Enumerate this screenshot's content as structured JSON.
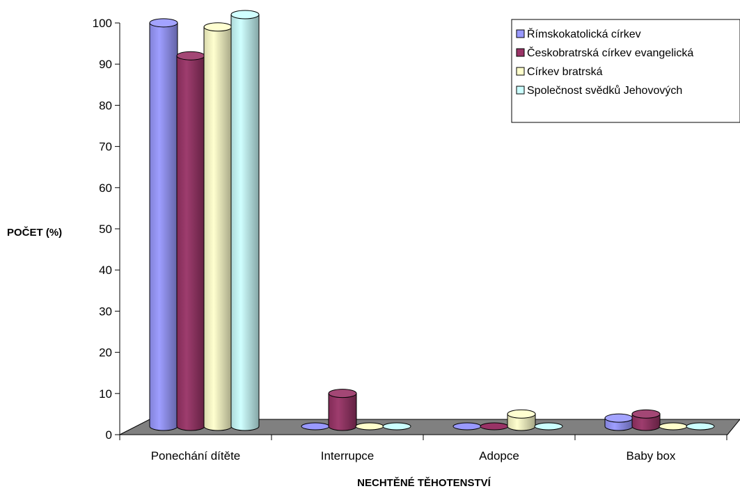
{
  "chart_data": {
    "type": "bar",
    "style": "3d-cylinder",
    "title": "",
    "xlabel": "NECHTĚNÉ TĚHOTENSTVÍ",
    "ylabel": "POČET (%)",
    "ylim": [
      0,
      100
    ],
    "yticks": [
      0,
      10,
      20,
      30,
      40,
      50,
      60,
      70,
      80,
      90,
      100
    ],
    "grid": false,
    "legend_position": "top-right",
    "categories": [
      "Ponechání dítěte",
      "Interrupce",
      "Adopce",
      "Baby box"
    ],
    "series": [
      {
        "name": "Římskokatolická církev",
        "color": "#9999ff",
        "values": [
          98,
          0,
          0,
          2
        ]
      },
      {
        "name": "Českobratrská církev evangelická",
        "color": "#993366",
        "values": [
          90,
          8,
          0,
          3
        ]
      },
      {
        "name": "Církev bratrská",
        "color": "#ffffcc",
        "values": [
          97,
          0,
          3,
          0
        ]
      },
      {
        "name": "Společnost svědků Jehovových",
        "color": "#ccffff",
        "values": [
          100,
          0,
          0,
          0
        ]
      }
    ]
  }
}
